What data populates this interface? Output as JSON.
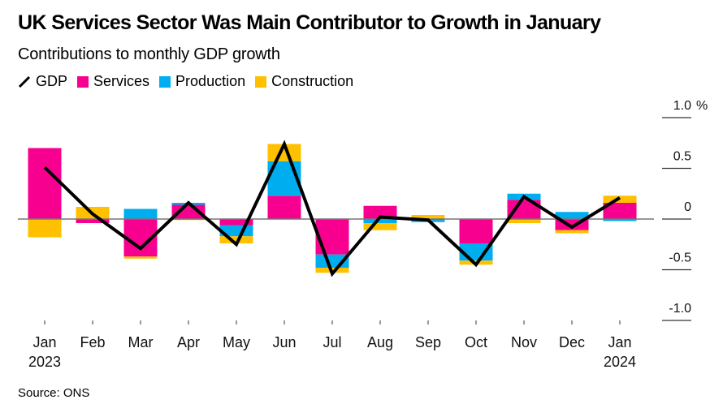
{
  "header": {
    "title": "UK Services Sector Was Main Contributor to Growth in January",
    "subtitle": "Contributions to monthly GDP growth"
  },
  "footer": {
    "source": "Source: ONS"
  },
  "colors": {
    "services": "#F7008F",
    "production": "#00ADEF",
    "construction": "#FFC000",
    "gdp": "#000000",
    "baseline": "#777777"
  },
  "chart_data": {
    "type": "bar",
    "subtype": "stacked-bar-with-line",
    "title": "UK Services Sector Was Main Contributor to Growth in January",
    "subtitle": "Contributions to monthly GDP growth",
    "xlabel": "",
    "ylabel": "%",
    "ylim": [
      -1.0,
      1.0
    ],
    "yticks": [
      {
        "value": 1.0,
        "label": "1.0"
      },
      {
        "value": 0.5,
        "label": "0.5"
      },
      {
        "value": 0,
        "label": "0"
      },
      {
        "value": -0.5,
        "label": "-0.5"
      },
      {
        "value": -1.0,
        "label": "-1.0"
      }
    ],
    "y_unit_label": "%",
    "y_axis_side": "right",
    "grid": false,
    "legend": {
      "placement": "top-left",
      "entries": [
        {
          "name": "GDP",
          "kind": "line",
          "color_key": "gdp"
        },
        {
          "name": "Services",
          "kind": "bar",
          "color_key": "services"
        },
        {
          "name": "Production",
          "kind": "bar",
          "color_key": "production"
        },
        {
          "name": "Construction",
          "kind": "bar",
          "color_key": "construction"
        }
      ]
    },
    "categories": [
      {
        "month": "Jan",
        "year": "2023"
      },
      {
        "month": "Feb",
        "year": ""
      },
      {
        "month": "Mar",
        "year": ""
      },
      {
        "month": "Apr",
        "year": ""
      },
      {
        "month": "May",
        "year": ""
      },
      {
        "month": "Jun",
        "year": ""
      },
      {
        "month": "Jul",
        "year": ""
      },
      {
        "month": "Aug",
        "year": ""
      },
      {
        "month": "Sep",
        "year": ""
      },
      {
        "month": "Oct",
        "year": ""
      },
      {
        "month": "Nov",
        "year": ""
      },
      {
        "month": "Dec",
        "year": ""
      },
      {
        "month": "Jan",
        "year": "2024"
      }
    ],
    "series": [
      {
        "name": "Services",
        "type": "bar",
        "color_key": "services",
        "values": [
          0.7,
          -0.04,
          -0.37,
          0.14,
          -0.06,
          0.23,
          -0.35,
          0.13,
          -0.01,
          -0.24,
          0.19,
          -0.11,
          0.16
        ]
      },
      {
        "name": "Production",
        "type": "bar",
        "color_key": "production",
        "values": [
          0.0,
          0.0,
          0.1,
          0.02,
          -0.11,
          0.34,
          -0.13,
          -0.04,
          -0.02,
          -0.17,
          0.06,
          0.07,
          -0.02
        ]
      },
      {
        "name": "Construction",
        "type": "bar",
        "color_key": "construction",
        "values": [
          -0.18,
          0.12,
          -0.02,
          -0.01,
          -0.07,
          0.17,
          -0.05,
          -0.07,
          0.04,
          -0.04,
          -0.04,
          -0.03,
          0.07
        ]
      },
      {
        "name": "GDP",
        "type": "line",
        "color_key": "gdp",
        "values": [
          0.51,
          0.05,
          -0.29,
          0.16,
          -0.25,
          0.74,
          -0.54,
          0.02,
          -0.01,
          -0.45,
          0.22,
          -0.08,
          0.21
        ]
      }
    ]
  }
}
